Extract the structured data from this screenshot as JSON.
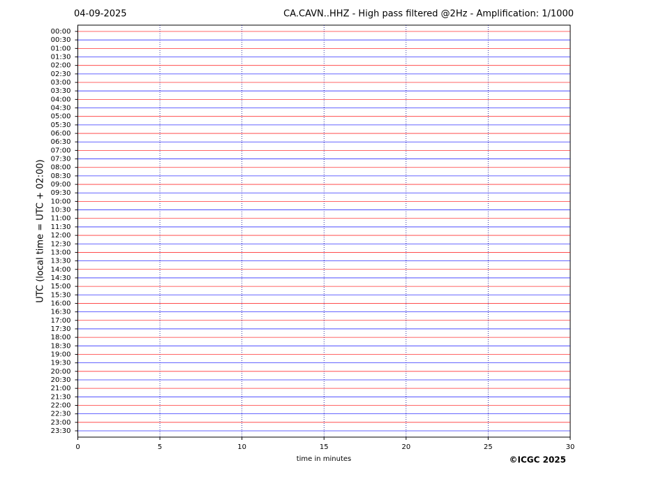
{
  "chart_data": {
    "type": "helicorder",
    "date": "04-09-2025",
    "title": "CA.CAVN..HHZ - High pass filtered @2Hz - Amplification: 1/1000",
    "ylabel": "UTC (local time = UTC + 02:00)",
    "xlabel": "time in minutes",
    "copyright": "©ICGC 2025",
    "categories": [
      "00:00",
      "00:30",
      "01:00",
      "01:30",
      "02:00",
      "02:30",
      "03:00",
      "03:30",
      "04:00",
      "04:30",
      "05:00",
      "05:30",
      "06:00",
      "06:30",
      "07:00",
      "07:30",
      "08:00",
      "08:30",
      "09:00",
      "09:30",
      "10:00",
      "10:30",
      "11:00",
      "11:30",
      "12:00",
      "12:30",
      "13:00",
      "13:30",
      "14:00",
      "14:30",
      "15:00",
      "15:30",
      "16:00",
      "16:30",
      "17:00",
      "17:30",
      "18:00",
      "18:30",
      "19:00",
      "19:30",
      "20:00",
      "20:30",
      "21:00",
      "21:30",
      "22:00",
      "22:30",
      "23:00",
      "23:30"
    ],
    "colors": [
      "#ff0000",
      "#0000ff"
    ],
    "xlim": [
      0,
      30
    ],
    "xticks": [
      0,
      5,
      10,
      15,
      20,
      25,
      30
    ],
    "grid": true
  }
}
